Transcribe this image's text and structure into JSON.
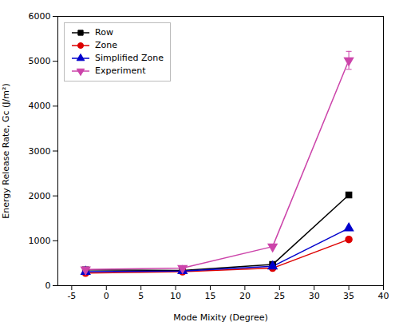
{
  "chart_data": {
    "type": "line",
    "x": [
      -3,
      11,
      24,
      35
    ],
    "series": [
      {
        "name": "Row",
        "color": "#000000",
        "marker": "square",
        "values": [
          350,
          340,
          470,
          2020
        ],
        "yerr": [
          0,
          0,
          0,
          55
        ]
      },
      {
        "name": "Zone",
        "color": "#dd0000",
        "marker": "circle",
        "values": [
          280,
          310,
          390,
          1030
        ]
      },
      {
        "name": "Simplified Zone",
        "color": "#0000cc",
        "marker": "triangle-up",
        "values": [
          310,
          325,
          430,
          1280
        ]
      },
      {
        "name": "Experiment",
        "color": "#cc44aa",
        "marker": "triangle-down",
        "values": [
          360,
          390,
          870,
          5020
        ],
        "yerr": [
          0,
          0,
          0,
          200
        ]
      }
    ],
    "xlabel": "Mode Mixity (Degree)",
    "ylabel": "Energy Release Rate, Gc (J/m²)",
    "xlim": [
      -7,
      40
    ],
    "ylim": [
      0,
      6000
    ],
    "xticks": [
      -5,
      0,
      5,
      10,
      15,
      20,
      25,
      30,
      35,
      40
    ],
    "yticks": [
      0,
      1000,
      2000,
      3000,
      4000,
      5000,
      6000
    ],
    "legend": "upper left"
  }
}
